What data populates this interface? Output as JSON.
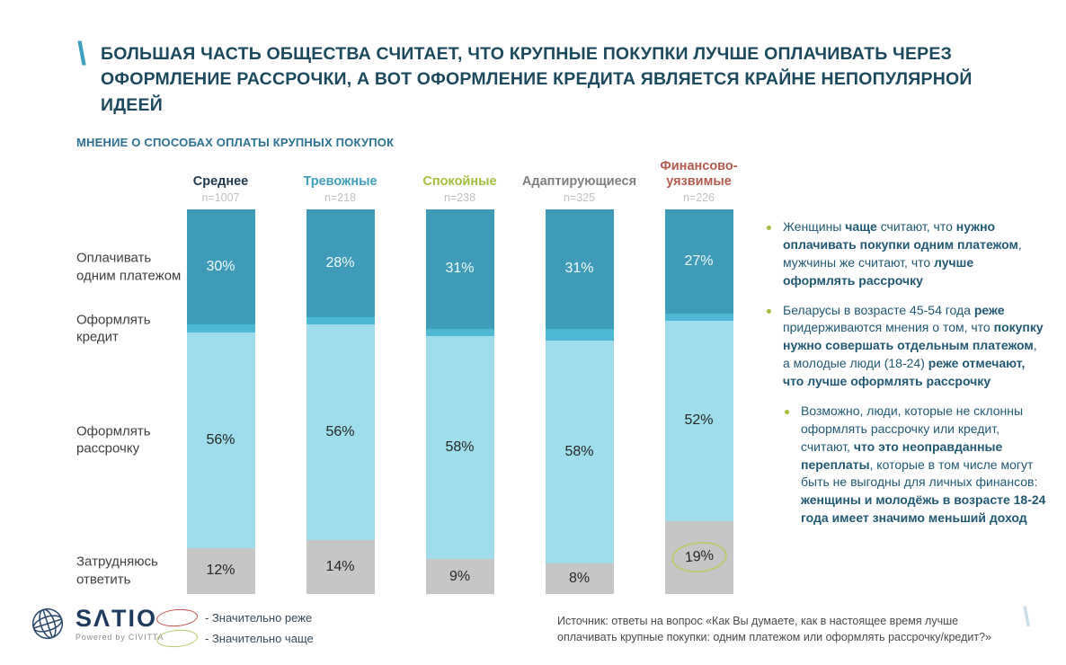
{
  "slide": {
    "title": "БОЛЬШАЯ ЧАСТЬ ОБЩЕСТВА СЧИТАЕТ, ЧТО КРУПНЫЕ ПОКУПКИ ЛУЧШЕ ОПЛАЧИВАТЬ ЧЕРЕЗ ОФОРМЛЕНИЕ РАССРОЧКИ, А ВОТ ОФОРМЛЕНИЕ КРЕДИТА ЯВЛЯЕТСЯ КРАЙНЕ НЕПОПУЛЯРНОЙ ИДЕЕЙ",
    "subtitle": "МНЕНИЕ О СПОСОБАХ ОПЛАТЫ КРУПНЫХ ПОКУПОК",
    "slash_color": "#3E9FBE"
  },
  "chart_data": {
    "type": "bar",
    "stacked": true,
    "orientation": "vertical",
    "unit": "%",
    "ylim": [
      0,
      100
    ],
    "grid": false,
    "categories": [
      "Среднее",
      "Тревожные",
      "Спокойные",
      "Адаптирующиеся",
      "Финансово-уязвимые"
    ],
    "category_colors": [
      "#20384E",
      "#3F9FBE",
      "#A3BE3C",
      "#7F7F7F",
      "#B45A4E"
    ],
    "sample_sizes": [
      "n=1007",
      "n=218",
      "n=238",
      "n=325",
      "n=226"
    ],
    "row_labels": [
      "Оплачивать одним платежом",
      "Оформлять кредит",
      "Оформлять рассрочку",
      "Затрудняюсь ответить"
    ],
    "series": [
      {
        "name": "Оплачивать одним платежом",
        "color": "#3E9CB8",
        "values": [
          30,
          28,
          31,
          31,
          27
        ],
        "labels": [
          "30%",
          "28%",
          "31%",
          "31%",
          "27%"
        ]
      },
      {
        "name": "Оформлять кредит",
        "color": "#4DB7D4",
        "values": [
          2,
          2,
          2,
          3,
          2
        ],
        "labels": [
          "",
          "",
          "",
          "",
          ""
        ]
      },
      {
        "name": "Оформлять рассрочку",
        "color": "#9FDCEC",
        "values": [
          56,
          56,
          58,
          58,
          52
        ],
        "labels": [
          "56%",
          "56%",
          "58%",
          "58%",
          "52%"
        ]
      },
      {
        "name": "Затрудняюсь ответить",
        "color": "#C6C6C7",
        "values": [
          12,
          14,
          9,
          8,
          19
        ],
        "labels": [
          "12%",
          "14%",
          "9%",
          "8%",
          "19%"
        ]
      }
    ],
    "annotations": [
      {
        "category": "Финансово-уязвимые",
        "series": "Затрудняюсь ответить",
        "label": "19%",
        "mark": "green-ellipse",
        "meaning": "Значительно чаще"
      }
    ]
  },
  "insights": {
    "bullets": [
      {
        "indent": false,
        "segments": [
          {
            "t": "Женщины ",
            "b": false
          },
          {
            "t": "чаще",
            "b": true
          },
          {
            "t": " считают, что ",
            "b": false
          },
          {
            "t": "нужно оплачивать покупки одним платежом",
            "b": true
          },
          {
            "t": ", мужчины же считают, что ",
            "b": false
          },
          {
            "t": "лучше оформлять рассрочку",
            "b": true
          }
        ]
      },
      {
        "indent": false,
        "segments": [
          {
            "t": "Беларусы в возрасте 45-54 года ",
            "b": false
          },
          {
            "t": "реже",
            "b": true
          },
          {
            "t": " придерживаются мнения о том, что ",
            "b": false
          },
          {
            "t": "покупку нужно совершать отдельным платежом",
            "b": true
          },
          {
            "t": ", а молодые люди (18-24) ",
            "b": false
          },
          {
            "t": "реже отмечают, что лучше оформлять рассрочку",
            "b": true
          }
        ]
      },
      {
        "indent": true,
        "segments": [
          {
            "t": "Возможно, люди, которые не склонны оформлять рассрочку или кредит, считают, ",
            "b": false
          },
          {
            "t": "что это неоправданные переплаты",
            "b": true
          },
          {
            "t": ", которые в том числе могут быть не выгодны для личных финансов: ",
            "b": false
          },
          {
            "t": "женщины и молодёжь в возрасте 18-24 года имеет значимо меньший доход",
            "b": true
          }
        ]
      }
    ]
  },
  "legend": {
    "items": [
      {
        "shape": "ellipse",
        "color": "#C0504D",
        "label": "- Значительно реже"
      },
      {
        "shape": "ellipse",
        "color": "#B4C96E",
        "label": "- Значительно чаще"
      }
    ]
  },
  "footer": {
    "logo_text": "SΛTIO",
    "logo_sub": "Powered by CIVITTA",
    "source": "Источник: ответы на вопрос «Как Вы думаете, как в настоящее время лучше оплачивать крупные покупки: одним платежом или оформлять рассрочку/кредит?»"
  }
}
